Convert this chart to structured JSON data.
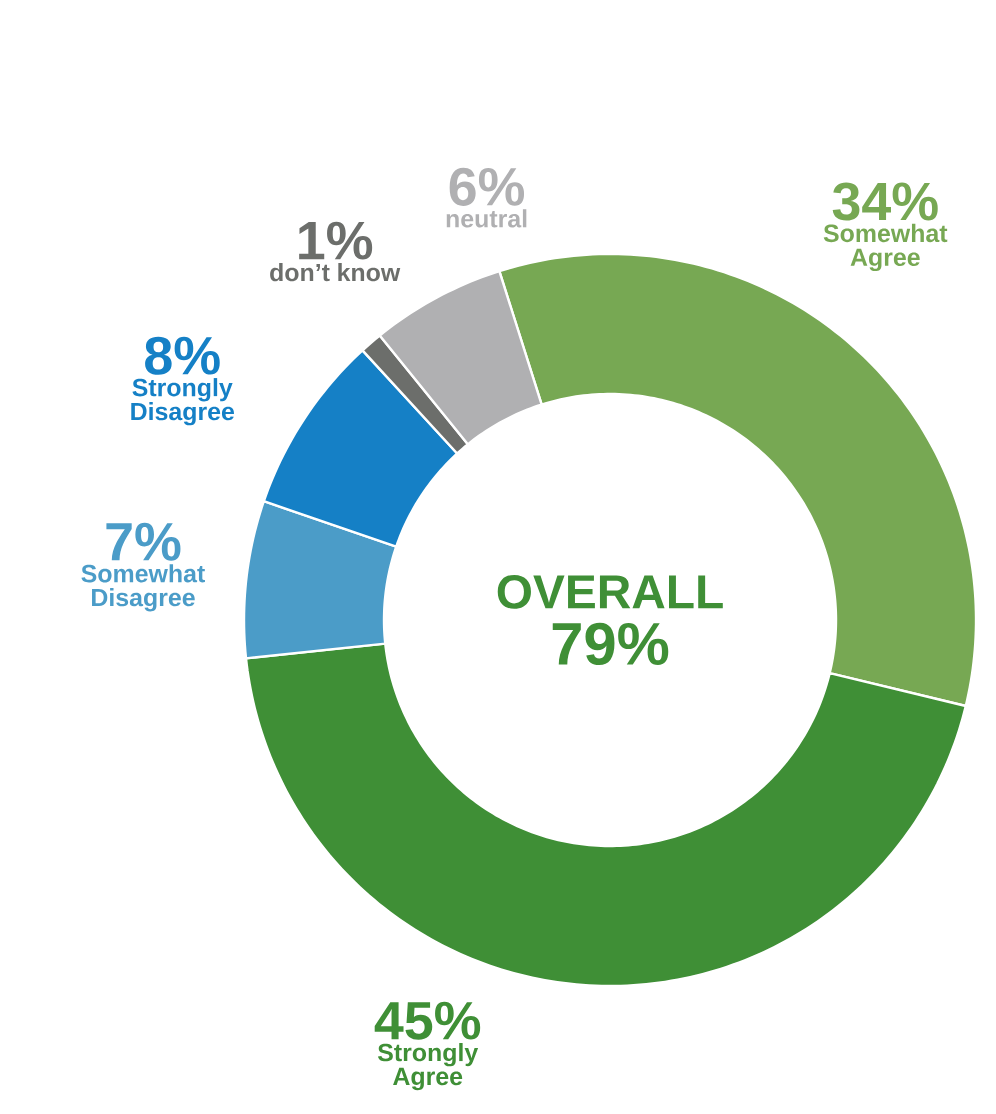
{
  "chart_data": {
    "type": "donut",
    "categories": [
      "Somewhat Agree",
      "Strongly Agree",
      "Somewhat Disagree",
      "Strongly Disagree",
      "don’t know",
      "neutral"
    ],
    "values": [
      34,
      45,
      7,
      8,
      1,
      6
    ],
    "colors": [
      "#77a853",
      "#3f8f36",
      "#4b9cc8",
      "#1580c6",
      "#6c6e6b",
      "#b0b0b2"
    ],
    "value_labels": [
      "34%",
      "45%",
      "7%",
      "8%",
      "1%",
      "6%"
    ],
    "annotations": [
      "OVERALL",
      "79%"
    ]
  }
}
